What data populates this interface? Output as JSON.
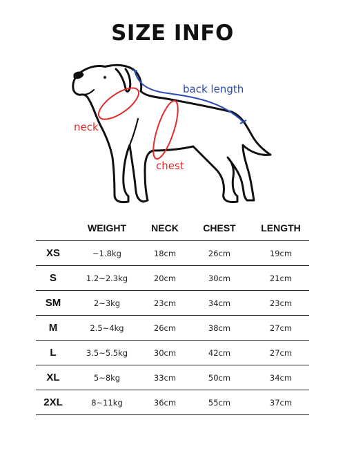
{
  "title": "SIZE INFO",
  "diagram": {
    "labels": {
      "back_length": "back length",
      "neck": "neck",
      "chest": "chest"
    },
    "colors": {
      "outline": "#111111",
      "back_length": "#2a4bb0",
      "neck_chest": "#e02b2b"
    }
  },
  "table": {
    "headers": {
      "size": "",
      "weight": "WEIGHT",
      "neck": "NECK",
      "chest": "CHEST",
      "length": "LENGTH"
    },
    "rows": [
      {
        "size": "XS",
        "weight": "~1.8kg",
        "neck": "18cm",
        "chest": "26cm",
        "length": "19cm"
      },
      {
        "size": "S",
        "weight": "1.2~2.3kg",
        "neck": "20cm",
        "chest": "30cm",
        "length": "21cm"
      },
      {
        "size": "SM",
        "weight": "2~3kg",
        "neck": "23cm",
        "chest": "34cm",
        "length": "23cm"
      },
      {
        "size": "M",
        "weight": "2.5~4kg",
        "neck": "26cm",
        "chest": "38cm",
        "length": "27cm"
      },
      {
        "size": "L",
        "weight": "3.5~5.5kg",
        "neck": "30cm",
        "chest": "42cm",
        "length": "27cm"
      },
      {
        "size": "XL",
        "weight": "5~8kg",
        "neck": "33cm",
        "chest": "50cm",
        "length": "34cm"
      },
      {
        "size": "2XL",
        "weight": "8~11kg",
        "neck": "36cm",
        "chest": "55cm",
        "length": "37cm"
      }
    ]
  }
}
